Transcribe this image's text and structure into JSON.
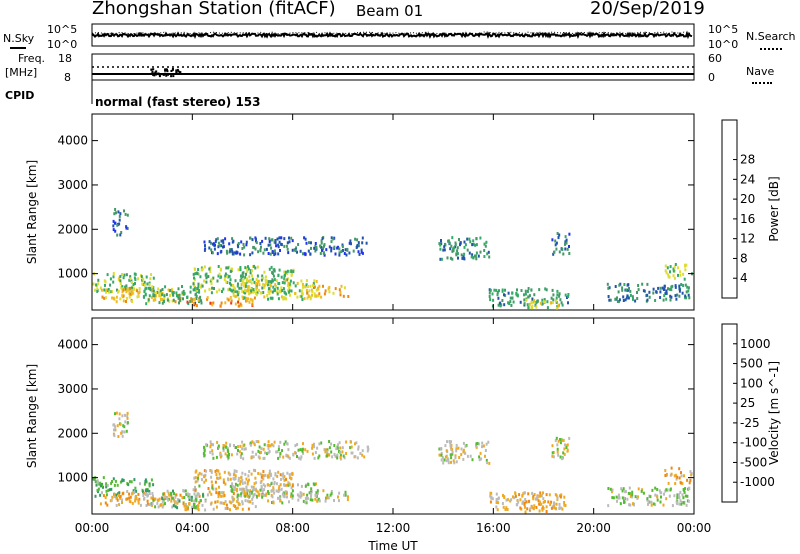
{
  "header": {
    "station": "Zhongshan Station (fitACF)",
    "beam": "Beam 01",
    "date": "20/Sep/2019"
  },
  "noise_panel": {
    "left_label": "N.Sky",
    "right_label": "N.Search",
    "left_ticks": [
      "10^5",
      "10^0"
    ],
    "right_ticks": [
      "10^5",
      "10^0"
    ]
  },
  "freq_panel": {
    "left_label": "Freq.",
    "left_unit": "[MHz]",
    "right_label": "Nave",
    "left_ticks": [
      "18",
      "8"
    ],
    "right_ticks": [
      "60",
      "0"
    ]
  },
  "cpid": {
    "label": "CPID",
    "mode": "normal (fast stereo) 153"
  },
  "colors": {
    "power_scale": [
      "#2233ee",
      "#2255aa",
      "#449966",
      "#33aa66",
      "#dddd33",
      "#eebb22",
      "#ee8811",
      "#ee3311",
      "#ff0000"
    ],
    "velocity_scale": [
      "#2233ee",
      "#2255aa",
      "#339966",
      "#55bb33",
      "#bbbbbb",
      "#eeaa22",
      "#ee8811",
      "#ee4411",
      "#ff0000"
    ]
  },
  "chart_data": [
    {
      "type": "heatmap",
      "name": "power",
      "ylabel": "Slant Range [km]",
      "xlabel": "Time UT",
      "x_ticks": [
        "00:00",
        "04:00",
        "08:00",
        "12:00",
        "16:00",
        "20:00",
        "00:00"
      ],
      "y_ticks": [
        "1000",
        "2000",
        "3000",
        "4000"
      ],
      "xlim": [
        0,
        24
      ],
      "ylim": [
        180,
        4600
      ],
      "colorbar": {
        "label": "Power [dB]",
        "ticks": [
          "4",
          "8",
          "12",
          "16",
          "20",
          "24",
          "28"
        ],
        "range": [
          0,
          32
        ]
      },
      "regions": [
        {
          "t": [
            0.0,
            2.5
          ],
          "r": [
            600,
            1050
          ],
          "v": 14
        },
        {
          "t": [
            0.8,
            1.4
          ],
          "r": [
            1900,
            2500
          ],
          "v": 6
        },
        {
          "t": [
            0.3,
            3.6
          ],
          "r": [
            400,
            700
          ],
          "v": 19
        },
        {
          "t": [
            2.0,
            4.5
          ],
          "r": [
            350,
            750
          ],
          "v": 11
        },
        {
          "t": [
            3.6,
            6.5
          ],
          "r": [
            300,
            500
          ],
          "v": 22
        },
        {
          "t": [
            4.0,
            8.0
          ],
          "r": [
            600,
            1200
          ],
          "v": 13
        },
        {
          "t": [
            5.5,
            9.0
          ],
          "r": [
            450,
            900
          ],
          "v": 16
        },
        {
          "t": [
            8.5,
            10.2
          ],
          "r": [
            500,
            750
          ],
          "v": 20
        },
        {
          "t": [
            4.4,
            11.0
          ],
          "r": [
            1450,
            1850
          ],
          "v": 6
        },
        {
          "t": [
            13.8,
            15.8
          ],
          "r": [
            1350,
            1850
          ],
          "v": 9
        },
        {
          "t": [
            15.8,
            19.0
          ],
          "r": [
            300,
            700
          ],
          "v": 10
        },
        {
          "t": [
            17.2,
            18.6
          ],
          "r": [
            250,
            500
          ],
          "v": 15
        },
        {
          "t": [
            18.3,
            19.0
          ],
          "r": [
            1450,
            1950
          ],
          "v": 7
        },
        {
          "t": [
            20.5,
            23.8
          ],
          "r": [
            400,
            800
          ],
          "v": 8
        },
        {
          "t": [
            22.8,
            23.9
          ],
          "r": [
            900,
            1250
          ],
          "v": 14
        }
      ]
    },
    {
      "type": "heatmap",
      "name": "velocity",
      "ylabel": "Slant Range [km]",
      "xlabel": "Time UT",
      "x_ticks": [
        "00:00",
        "04:00",
        "08:00",
        "12:00",
        "16:00",
        "20:00",
        "00:00"
      ],
      "y_ticks": [
        "1000",
        "2000",
        "3000",
        "4000"
      ],
      "xlim": [
        0,
        24
      ],
      "ylim": [
        180,
        4600
      ],
      "colorbar": {
        "label": "Velocity [m s^-1]",
        "ticks": [
          "1000",
          "500",
          "100",
          "25",
          "-25",
          "-100",
          "-500",
          "-1000"
        ],
        "range": [
          -1200,
          1200
        ]
      },
      "regions": [
        {
          "t": [
            0.0,
            2.5
          ],
          "r": [
            600,
            1050
          ],
          "v": 300
        },
        {
          "t": [
            0.8,
            1.4
          ],
          "r": [
            1900,
            2500
          ],
          "v": 0
        },
        {
          "t": [
            0.3,
            3.6
          ],
          "r": [
            400,
            700
          ],
          "v": -300
        },
        {
          "t": [
            2.0,
            4.5
          ],
          "r": [
            350,
            750
          ],
          "v": 150
        },
        {
          "t": [
            3.6,
            6.5
          ],
          "r": [
            300,
            500
          ],
          "v": -250
        },
        {
          "t": [
            4.0,
            8.0
          ],
          "r": [
            600,
            1200
          ],
          "v": -150
        },
        {
          "t": [
            5.5,
            9.0
          ],
          "r": [
            450,
            900
          ],
          "v": 60
        },
        {
          "t": [
            8.5,
            10.2
          ],
          "r": [
            500,
            750
          ],
          "v": 50
        },
        {
          "t": [
            4.4,
            11.0
          ],
          "r": [
            1450,
            1850
          ],
          "v": 5
        },
        {
          "t": [
            13.8,
            15.8
          ],
          "r": [
            1350,
            1850
          ],
          "v": 0
        },
        {
          "t": [
            15.8,
            19.0
          ],
          "r": [
            300,
            700
          ],
          "v": -200
        },
        {
          "t": [
            17.2,
            18.6
          ],
          "r": [
            250,
            500
          ],
          "v": -350
        },
        {
          "t": [
            18.3,
            19.0
          ],
          "r": [
            1450,
            1950
          ],
          "v": 0
        },
        {
          "t": [
            20.5,
            23.8
          ],
          "r": [
            400,
            800
          ],
          "v": 80
        },
        {
          "t": [
            22.8,
            23.9
          ],
          "r": [
            900,
            1250
          ],
          "v": -300
        }
      ]
    }
  ]
}
